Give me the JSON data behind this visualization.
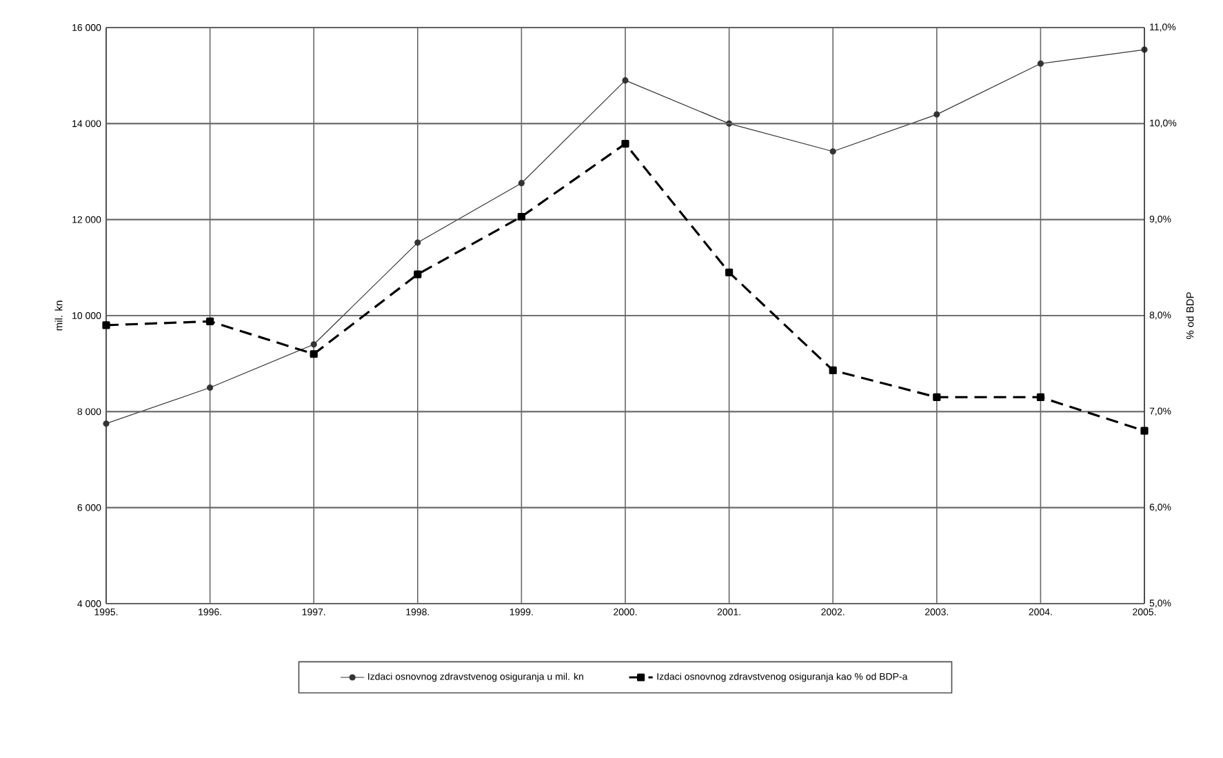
{
  "chart_data": {
    "type": "line",
    "categories": [
      "1995.",
      "1996.",
      "1997.",
      "1998.",
      "1999.",
      "2000.",
      "2001.",
      "2002.",
      "2003.",
      "2004.",
      "2005."
    ],
    "ylabel": "mil. kn",
    "y2label": "% od BDP",
    "ylim": [
      4000,
      16000
    ],
    "yticks": [
      {
        "value": 4000,
        "label": "4 000"
      },
      {
        "value": 6000,
        "label": "6 000"
      },
      {
        "value": 8000,
        "label": "8 000"
      },
      {
        "value": 10000,
        "label": "10 000"
      },
      {
        "value": 12000,
        "label": "12 000"
      },
      {
        "value": 14000,
        "label": "14 000"
      },
      {
        "value": 16000,
        "label": "16 000"
      }
    ],
    "y2lim": [
      5,
      11
    ],
    "y2ticks": [
      {
        "value": 5,
        "label": "5,0%"
      },
      {
        "value": 6,
        "label": "6,0%"
      },
      {
        "value": 7,
        "label": "7,0%"
      },
      {
        "value": 8,
        "label": "8,0%"
      },
      {
        "value": 9,
        "label": "9,0%"
      },
      {
        "value": 10,
        "label": "10,0%"
      },
      {
        "value": 11,
        "label": "11,0%"
      }
    ],
    "grid": true,
    "legend": "bottom",
    "series": [
      {
        "name": "Izdaci osnovnog zdravstvenog osiguranja u mil. kn",
        "color": "#333333",
        "marker": "circle",
        "line_style": "solid",
        "values": [
          7750,
          8500,
          9400,
          11520,
          12760,
          14900,
          14000,
          13420,
          14190,
          15250,
          15540
        ]
      },
      {
        "name": "Izdaci osnovnog zdravstvenog osiguranja kao % od BDP-a",
        "color": "#000000",
        "marker": "square",
        "line_style": "dashed",
        "axis": "y2",
        "values": [
          7.9,
          7.94,
          7.6,
          8.43,
          9.03,
          9.79,
          8.45,
          7.43,
          7.15,
          7.15,
          6.8
        ]
      }
    ]
  }
}
